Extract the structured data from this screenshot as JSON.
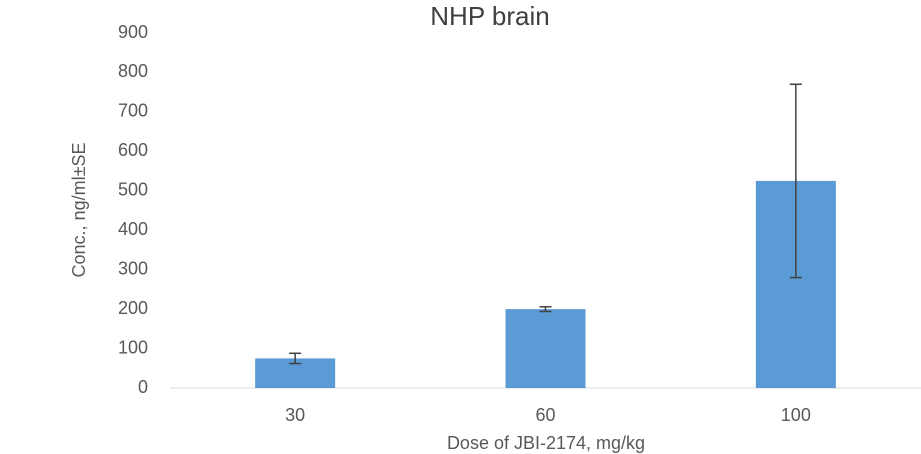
{
  "chart_data": {
    "type": "bar",
    "title": "NHP brain",
    "x_label": "Dose of JBI-2174, mg/kg",
    "y_label": "Conc., ng/ml±SE",
    "categories": [
      "30",
      "60",
      "100"
    ],
    "values": [
      75,
      200,
      525
    ],
    "errors": [
      13,
      6,
      245
    ],
    "color": "#5b9bd5",
    "error_color": "#404040",
    "ylim": [
      0,
      900
    ],
    "yticks": [
      0,
      100,
      200,
      300,
      400,
      500,
      600,
      700,
      800,
      900
    ],
    "grid": false
  }
}
